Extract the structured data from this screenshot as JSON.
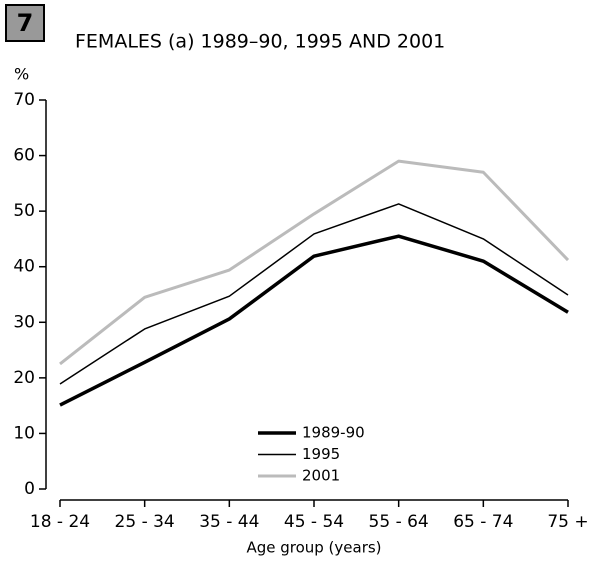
{
  "badge": "7",
  "chart_data": {
    "type": "line",
    "title": "FEMALES (a) 1989–90, 1995 AND 2001",
    "y_label": "%",
    "x_label": "Age group (years)",
    "categories": [
      "18 - 24",
      "25 - 34",
      "35 - 44",
      "45 - 54",
      "55 - 64",
      "65 - 74",
      "75 +"
    ],
    "series": [
      {
        "name": "1989-90",
        "color": "#000000",
        "values": [
          15.1,
          22.8,
          30.6,
          41.9,
          45.5,
          41,
          31.8
        ]
      },
      {
        "name": "1995",
        "color": "#000000",
        "values": [
          18.9,
          28.8,
          34.7,
          45.9,
          51.3,
          45,
          34.9
        ]
      },
      {
        "name": "2001",
        "color": "#bbbbbb",
        "values": [
          22.5,
          34.5,
          39.4,
          49.5,
          59,
          57,
          41.2
        ]
      }
    ],
    "ylim": [
      0,
      70
    ],
    "yticks": [
      0,
      10,
      20,
      30,
      40,
      50,
      60,
      70
    ],
    "legend": "bottom-center"
  }
}
